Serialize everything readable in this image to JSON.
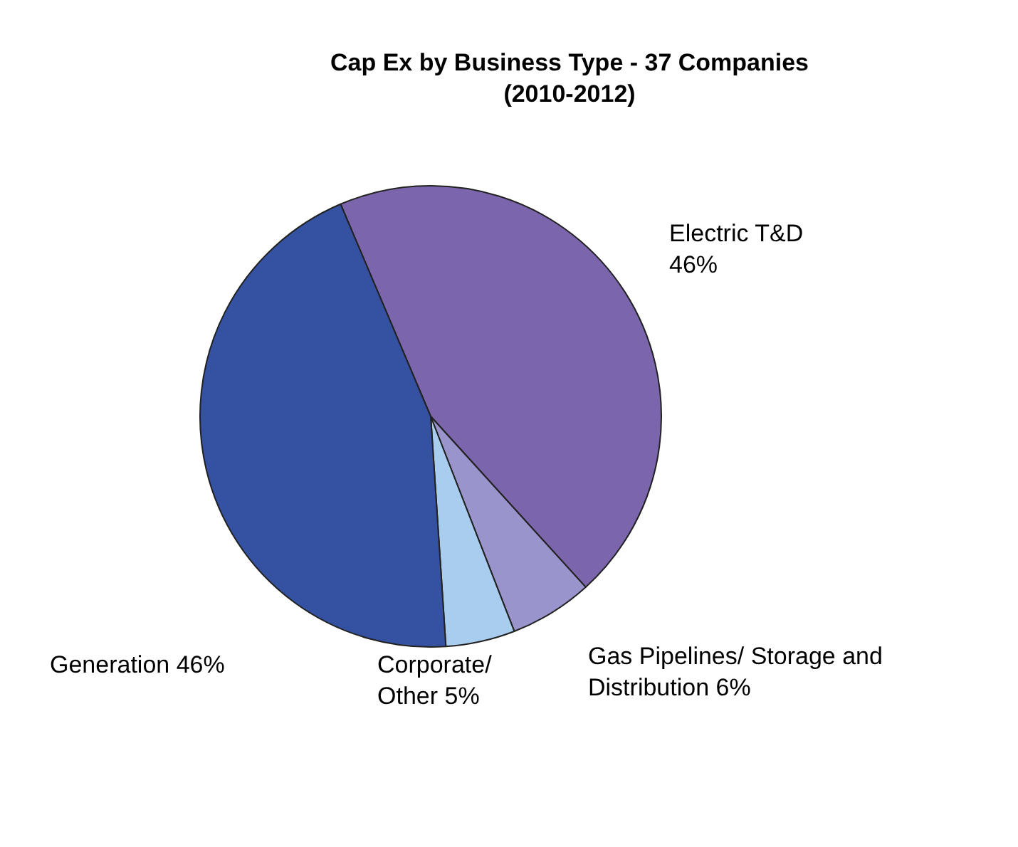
{
  "chart_data": {
    "type": "pie",
    "title": "Cap Ex by Business Type - 37 Companies (2010-2012)",
    "categories": [
      "Electric T&D",
      "Gas Pipelines/ Storage and  Distribution",
      "Corporate/ Other",
      "Generation"
    ],
    "values": [
      46,
      6,
      5,
      46
    ],
    "value_labels": [
      "46%",
      "6%",
      "5%",
      "46%"
    ],
    "colors": [
      "#7b65ad",
      "#9a94cc",
      "#a8cdee",
      "#3451a2"
    ],
    "legend": false
  }
}
